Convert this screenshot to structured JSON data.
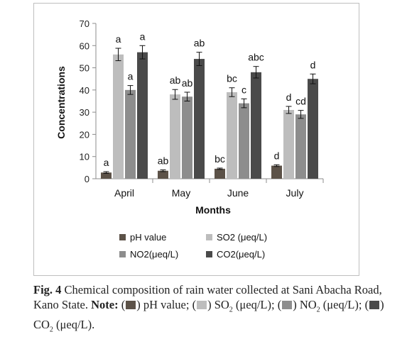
{
  "chart_data": {
    "type": "bar",
    "categories": [
      "April",
      "May",
      "June",
      "July"
    ],
    "series": [
      {
        "name": "pH value",
        "values": [
          2.8,
          3.6,
          4.5,
          5.9
        ],
        "errors": [
          0.4,
          0.4,
          0.3,
          0.4
        ],
        "labels": [
          "a",
          "ab",
          "bc",
          "d"
        ],
        "color": "#5c5248"
      },
      {
        "name": "SO2 (μeq/L)",
        "values": [
          56,
          38,
          39,
          31
        ],
        "errors": [
          2.8,
          2.2,
          2.0,
          1.6
        ],
        "labels": [
          "a",
          "ab",
          "bc",
          "d"
        ],
        "color": "#bdbdbd"
      },
      {
        "name": "NO2(μeq/L)",
        "values": [
          40,
          37,
          34,
          29
        ],
        "errors": [
          2.0,
          2.0,
          2.0,
          1.8
        ],
        "labels": [
          "a",
          "ab",
          "c",
          "cd"
        ],
        "color": "#8d8d8d"
      },
      {
        "name": "CO2(μeq/L)",
        "values": [
          57,
          54,
          48,
          45
        ],
        "errors": [
          3.0,
          3.0,
          2.6,
          2.2
        ],
        "labels": [
          "a",
          "ab",
          "abc",
          "d"
        ],
        "color": "#4a4a4a"
      }
    ],
    "xlabel": "Months",
    "ylabel": "Concentrations",
    "ylim": [
      0,
      70
    ],
    "yticks": [
      0,
      10,
      20,
      30,
      40,
      50,
      60,
      70
    ],
    "grid": false,
    "legend_position": "bottom"
  },
  "caption": {
    "fig_label": "Fig. 4",
    "text": " Chemical composition of rain water collected at Sani Abacha Road, Kano State. ",
    "note_label": "Note:",
    "items": [
      {
        "text_before": " pH value; ",
        "text_sub": "",
        "text_after": ""
      },
      {
        "text_before": " SO",
        "text_sub": "2",
        "text_after": " (μeq/L); "
      },
      {
        "text_before": " NO",
        "text_sub": "2",
        "text_after": " (μeq/L); "
      },
      {
        "text_before": " CO",
        "text_sub": "2",
        "text_after": " (μeq/L)."
      }
    ]
  }
}
